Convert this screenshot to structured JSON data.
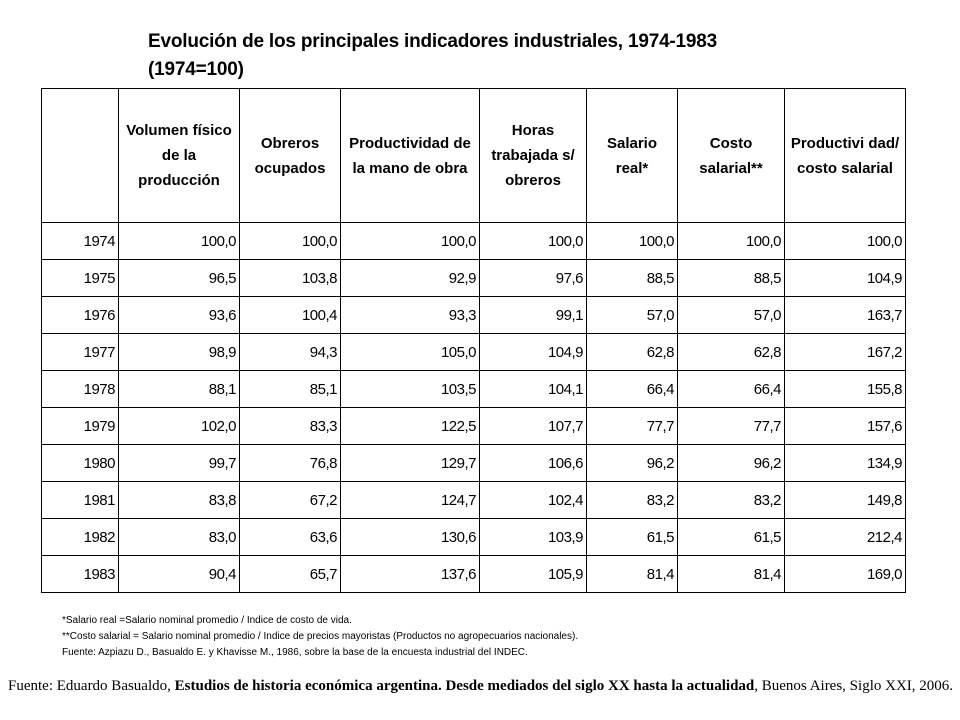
{
  "title": {
    "line1": "Evolución de los principales indicadores industriales, 1974-1983",
    "line2": "(1974=100)"
  },
  "table": {
    "headers": [
      "",
      "Volumen físico de la producción",
      "Obreros ocupados",
      "Productividad de la mano de obra",
      "Horas trabajada s/ obreros",
      "Salario real*",
      "Costo salarial**",
      "Productivi dad/ costo salarial"
    ],
    "rows": [
      [
        "1974",
        "100,0",
        "100,0",
        "100,0",
        "100,0",
        "100,0",
        "100,0",
        "100,0"
      ],
      [
        "1975",
        "96,5",
        "103,8",
        "92,9",
        "97,6",
        "88,5",
        "88,5",
        "104,9"
      ],
      [
        "1976",
        "93,6",
        "100,4",
        "93,3",
        "99,1",
        "57,0",
        "57,0",
        "163,7"
      ],
      [
        "1977",
        "98,9",
        "94,3",
        "105,0",
        "104,9",
        "62,8",
        "62,8",
        "167,2"
      ],
      [
        "1978",
        "88,1",
        "85,1",
        "103,5",
        "104,1",
        "66,4",
        "66,4",
        "155,8"
      ],
      [
        "1979",
        "102,0",
        "83,3",
        "122,5",
        "107,7",
        "77,7",
        "77,7",
        "157,6"
      ],
      [
        "1980",
        "99,7",
        "76,8",
        "129,7",
        "106,6",
        "96,2",
        "96,2",
        "134,9"
      ],
      [
        "1981",
        "83,8",
        "67,2",
        "124,7",
        "102,4",
        "83,2",
        "83,2",
        "149,8"
      ],
      [
        "1982",
        "83,0",
        "63,6",
        "130,6",
        "103,9",
        "61,5",
        "61,5",
        "212,4"
      ],
      [
        "1983",
        "90,4",
        "65,7",
        "137,6",
        "105,9",
        "81,4",
        "81,4",
        "169,0"
      ]
    ]
  },
  "notes": [
    "*Salario real =Salario nominal promedio / Indice de costo de vida.",
    "**Costo salarial = Salario nominal promedio / Indice de precios mayoristas (Productos no agropecuarios nacionales).",
    "Fuente: Azpiazu D., Basualdo E. y Khavisse M., 1986, sobre la base de la encuesta industrial del INDEC."
  ],
  "source": {
    "prefix": "Fuente: Eduardo Basualdo, ",
    "bold": "Estudios de historia económica argentina. Desde mediados del siglo XX hasta la actualidad",
    "suffix": ", Buenos Aires, Siglo XXI, 2006."
  }
}
